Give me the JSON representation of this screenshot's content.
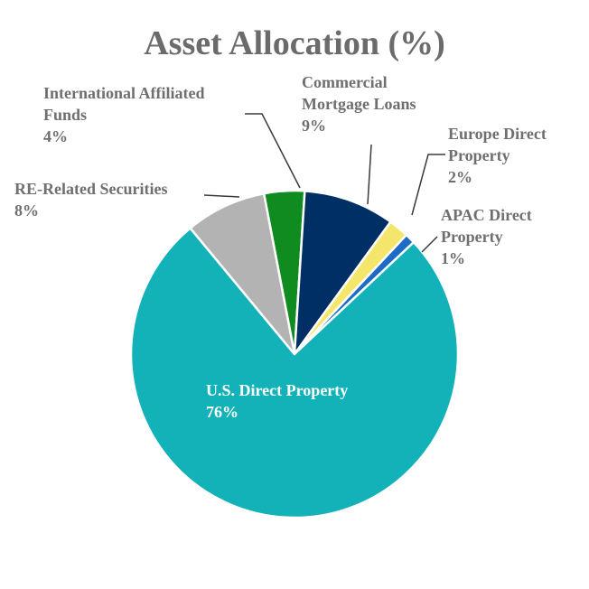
{
  "chart_data": {
    "type": "pie",
    "title": "Asset Allocation (%)",
    "slices": [
      {
        "name": "U.S. Direct Property",
        "value": 76,
        "label": "76%",
        "color": "#12b2b8"
      },
      {
        "name": "RE-Related Securities",
        "value": 8,
        "label": "8%",
        "color": "#b3b3b3"
      },
      {
        "name": "International Affiliated Funds",
        "value": 4,
        "label": "4%",
        "color": "#108b1f"
      },
      {
        "name": "Commercial Mortgage Loans",
        "value": 9,
        "label": "9%",
        "color": "#002f66"
      },
      {
        "name": "Europe Direct Property",
        "value": 2,
        "label": "2%",
        "color": "#f4e66a"
      },
      {
        "name": "APAC Direct Property",
        "value": 1,
        "label": "1%",
        "color": "#1c6bc4"
      }
    ],
    "slice_border_color": "#ffffff",
    "legend": "none",
    "data_labels": "outside-with-leaders"
  }
}
